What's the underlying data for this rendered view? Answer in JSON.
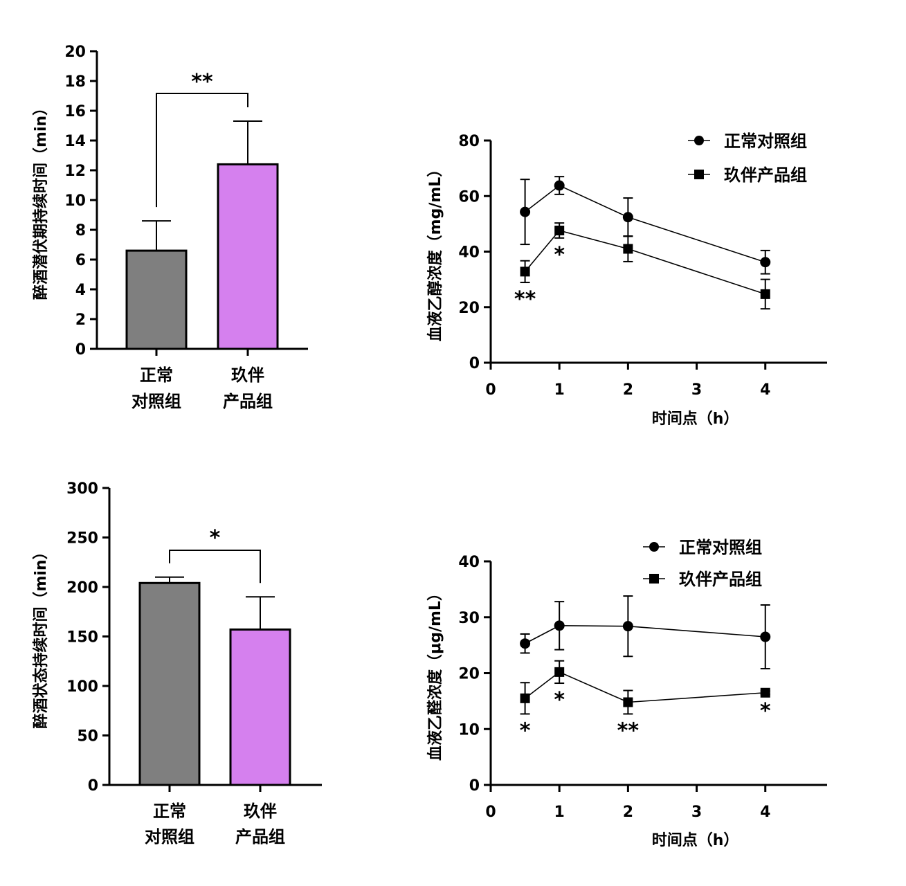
{
  "chart_data": [
    {
      "type": "bar",
      "id": "latency",
      "ylabel": "醉酒潜伏期持续时间（min）",
      "ylim": [
        0,
        20
      ],
      "yticks": [
        0,
        2,
        4,
        6,
        8,
        10,
        12,
        14,
        16,
        18,
        20
      ],
      "categories": [
        [
          "正常",
          "对照组"
        ],
        [
          "玖伴",
          "产品组"
        ]
      ],
      "values": [
        6.6,
        12.4
      ],
      "errors": [
        2.0,
        2.9
      ],
      "colors": [
        "#7f7f7f",
        "#d580ee"
      ],
      "significance": "**"
    },
    {
      "type": "line",
      "id": "ethanol",
      "ylabel": "血液乙醇浓度（mg/mL）",
      "xlabel": "时间点（h）",
      "xlim": [
        0,
        4.9
      ],
      "ylim": [
        0,
        80
      ],
      "xticks": [
        0,
        1,
        2,
        3,
        4
      ],
      "yticks": [
        0,
        20,
        40,
        60,
        80
      ],
      "series": [
        {
          "name": "正常对照组",
          "marker": "circle",
          "x": [
            0.5,
            1,
            2,
            4
          ],
          "values": [
            54.3,
            63.8,
            52.4,
            36.2
          ],
          "errors": [
            11.7,
            3.2,
            6.9,
            4.2
          ]
        },
        {
          "name": "玖伴产品组",
          "marker": "square",
          "x": [
            0.5,
            1,
            2,
            4
          ],
          "values": [
            32.8,
            47.6,
            41.0,
            24.7
          ],
          "errors": [
            3.9,
            2.7,
            4.6,
            5.3
          ]
        }
      ],
      "annotations": [
        {
          "x": 0.5,
          "text": "**",
          "value": 32.8,
          "err": 3.9
        },
        {
          "x": 1,
          "text": "*",
          "value": 47.6,
          "err": 2.7
        }
      ]
    },
    {
      "type": "bar",
      "id": "duration",
      "ylabel": "醉酒状态持续时间（min）",
      "ylim": [
        0,
        300
      ],
      "yticks": [
        0,
        50,
        100,
        150,
        200,
        250,
        300
      ],
      "categories": [
        [
          "正常",
          "对照组"
        ],
        [
          "玖伴",
          "产品组"
        ]
      ],
      "values": [
        204,
        157
      ],
      "errors": [
        6,
        33
      ],
      "colors": [
        "#7f7f7f",
        "#d580ee"
      ],
      "significance": "*"
    },
    {
      "type": "line",
      "id": "acetaldehyde",
      "ylabel": "血液乙醛浓度（μg/mL）",
      "xlabel": "时间点（h）",
      "xlim": [
        0,
        4.9
      ],
      "ylim": [
        0,
        40
      ],
      "xticks": [
        0,
        1,
        2,
        3,
        4
      ],
      "yticks": [
        0,
        10,
        20,
        30,
        40
      ],
      "series": [
        {
          "name": "正常对照组",
          "marker": "circle",
          "x": [
            0.5,
            1,
            2,
            4
          ],
          "values": [
            25.3,
            28.5,
            28.4,
            26.5
          ],
          "errors": [
            1.7,
            4.3,
            5.4,
            5.7
          ]
        },
        {
          "name": "玖伴产品组",
          "marker": "square",
          "x": [
            0.5,
            1,
            2,
            4
          ],
          "values": [
            15.5,
            20.2,
            14.8,
            16.5
          ],
          "errors": [
            2.8,
            2.0,
            2.1,
            0.3
          ]
        }
      ],
      "annotations": [
        {
          "x": 0.5,
          "text": "*",
          "value": 15.5,
          "err": 2.8
        },
        {
          "x": 1,
          "text": "*",
          "value": 20.2,
          "err": 2.0
        },
        {
          "x": 2,
          "text": "**",
          "value": 14.8,
          "err": 2.1
        },
        {
          "x": 4,
          "text": "*",
          "value": 16.5,
          "err": 0.3
        }
      ]
    }
  ]
}
